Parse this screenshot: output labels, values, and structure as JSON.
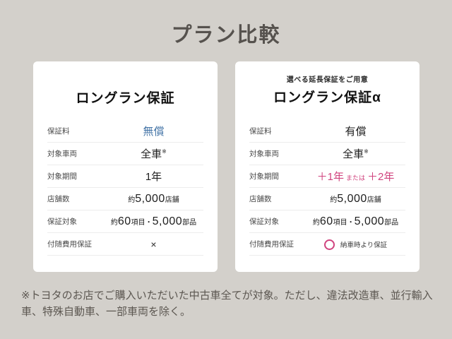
{
  "page_title": "プラン比較",
  "footnote": "※トヨタのお店でご購入いただいた中古車全てが対象。ただし、違法改造車、並行輸入車、特殊自動車、一部車両を除く。",
  "colors": {
    "background": "#d3d0cb",
    "card_background": "#ffffff",
    "accent_pink": "#d0437e",
    "value_blue": "#4575a7",
    "title_gray": "#56524e"
  },
  "left_card": {
    "title": "ロングラン保証",
    "labels": {
      "fee": "保証料",
      "vehicles": "対象車両",
      "period": "対象期間",
      "stores": "店舗数",
      "coverage": "保証対象",
      "incidental": "付随費用保証"
    },
    "values": {
      "fee": "無償",
      "vehicles": "全車",
      "vehicles_note": "※",
      "period": "1年",
      "stores_prefix": "約",
      "stores_num": "5,000",
      "stores_suffix": "店舗",
      "coverage_prefix": "約",
      "coverage_num1": "60",
      "coverage_mid": "項目・",
      "coverage_num2": "5,000",
      "coverage_suffix": "部品",
      "incidental": "×"
    }
  },
  "right_card": {
    "subtitle": "選べる延長保証をご用意",
    "title": "ロングラン保証α",
    "labels": {
      "fee": "保証料",
      "vehicles": "対象車両",
      "period": "対象期間",
      "stores": "店舗数",
      "coverage": "保証対象",
      "incidental": "付随費用保証"
    },
    "values": {
      "fee": "有償",
      "vehicles": "全車",
      "vehicles_note": "※",
      "period_1": "＋1年",
      "period_or": "または",
      "period_2": "＋2年",
      "stores_prefix": "約",
      "stores_num": "5,000",
      "stores_suffix": "店舗",
      "coverage_prefix": "約",
      "coverage_num1": "60",
      "coverage_mid": "項目・",
      "coverage_num2": "5,000",
      "coverage_suffix": "部品",
      "incidental_caption": "納車時より保証"
    }
  }
}
